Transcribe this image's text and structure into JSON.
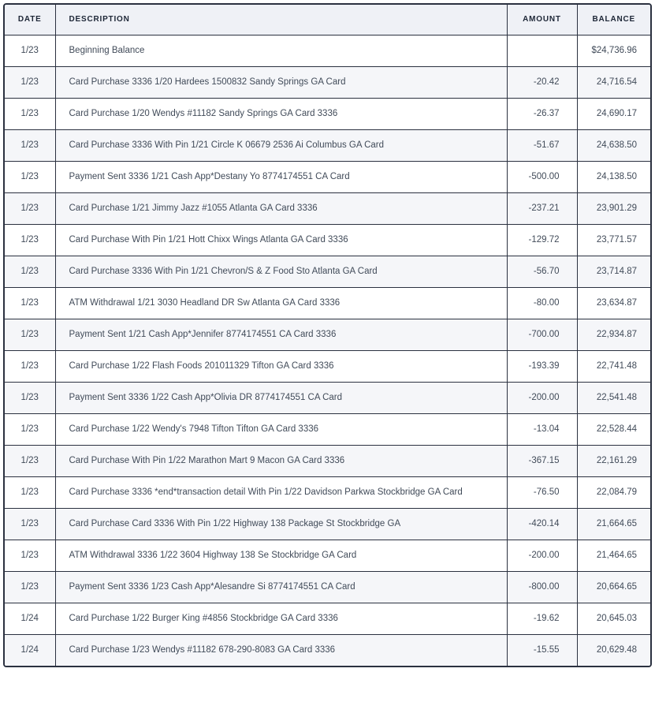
{
  "table": {
    "columns": [
      "DATE",
      "DESCRIPTION",
      "AMOUNT",
      "BALANCE"
    ],
    "rows": [
      {
        "date": "1/23",
        "description": "Beginning Balance",
        "amount": "",
        "balance": "$24,736.96"
      },
      {
        "date": "1/23",
        "description": "Card Purchase 3336 1/20 Hardees 1500832 Sandy Springs GA Card",
        "amount": "-20.42",
        "balance": "24,716.54"
      },
      {
        "date": "1/23",
        "description": "Card Purchase 1/20 Wendys #11182 Sandy Springs GA Card 3336",
        "amount": "-26.37",
        "balance": "24,690.17"
      },
      {
        "date": "1/23",
        "description": "Card Purchase 3336 With Pin 1/21 Circle K 06679 2536 Ai Columbus GA Card",
        "amount": "-51.67",
        "balance": "24,638.50"
      },
      {
        "date": "1/23",
        "description": "Payment Sent 3336 1/21 Cash App*Destany Yo 8774174551 CA Card",
        "amount": "-500.00",
        "balance": "24,138.50"
      },
      {
        "date": "1/23",
        "description": "Card Purchase 1/21 Jimmy Jazz #1055 Atlanta GA Card 3336",
        "amount": "-237.21",
        "balance": "23,901.29"
      },
      {
        "date": "1/23",
        "description": "Card Purchase With Pin 1/21 Hott Chixx Wings Atlanta GA Card 3336",
        "amount": "-129.72",
        "balance": "23,771.57"
      },
      {
        "date": "1/23",
        "description": "Card Purchase 3336 With Pin 1/21 Chevron/S & Z Food Sto Atlanta GA Card",
        "amount": "-56.70",
        "balance": "23,714.87"
      },
      {
        "date": "1/23",
        "description": "ATM Withdrawal 1/21 3030 Headland DR Sw Atlanta GA Card 3336",
        "amount": "-80.00",
        "balance": "23,634.87"
      },
      {
        "date": "1/23",
        "description": "Payment Sent 1/21 Cash App*Jennifer 8774174551 CA Card 3336",
        "amount": "-700.00",
        "balance": "22,934.87"
      },
      {
        "date": "1/23",
        "description": "Card Purchase 1/22 Flash Foods 201011329 Tifton GA Card 3336",
        "amount": "-193.39",
        "balance": "22,741.48"
      },
      {
        "date": "1/23",
        "description": "Payment Sent 3336 1/22 Cash App*Olivia DR 8774174551 CA Card",
        "amount": "-200.00",
        "balance": "22,541.48"
      },
      {
        "date": "1/23",
        "description": "Card Purchase 1/22 Wendy's 7948 Tifton Tifton GA Card 3336",
        "amount": "-13.04",
        "balance": "22,528.44"
      },
      {
        "date": "1/23",
        "description": "Card Purchase With Pin 1/22 Marathon Mart 9 Macon GA Card 3336",
        "amount": "-367.15",
        "balance": "22,161.29"
      },
      {
        "date": "1/23",
        "description": "Card Purchase 3336 *end*transaction detail With Pin 1/22 Davidson Parkwa Stockbridge GA Card",
        "amount": "-76.50",
        "balance": "22,084.79"
      },
      {
        "date": "1/23",
        "description": "Card Purchase Card 3336 With Pin 1/22 Highway 138 Package St Stockbridge GA",
        "amount": "-420.14",
        "balance": "21,664.65"
      },
      {
        "date": "1/23",
        "description": "ATM Withdrawal 3336 1/22 3604 Highway 138 Se Stockbridge GA Card",
        "amount": "-200.00",
        "balance": "21,464.65"
      },
      {
        "date": "1/23",
        "description": "Payment Sent 3336 1/23 Cash App*Alesandre Si 8774174551 CA Card",
        "amount": "-800.00",
        "balance": "20,664.65"
      },
      {
        "date": "1/24",
        "description": "Card Purchase 1/22 Burger King #4856 Stockbridge GA Card 3336",
        "amount": "-19.62",
        "balance": "20,645.03"
      },
      {
        "date": "1/24",
        "description": "Card Purchase 1/23 Wendys #11182 678-290-8083 GA Card 3336",
        "amount": "-15.55",
        "balance": "20,629.48"
      }
    ]
  },
  "colors": {
    "border": "#2b3140",
    "header_bg": "#eff1f6",
    "alt_row_bg": "#f5f6f9",
    "header_text": "#1d2636",
    "body_text": "#414b59"
  }
}
